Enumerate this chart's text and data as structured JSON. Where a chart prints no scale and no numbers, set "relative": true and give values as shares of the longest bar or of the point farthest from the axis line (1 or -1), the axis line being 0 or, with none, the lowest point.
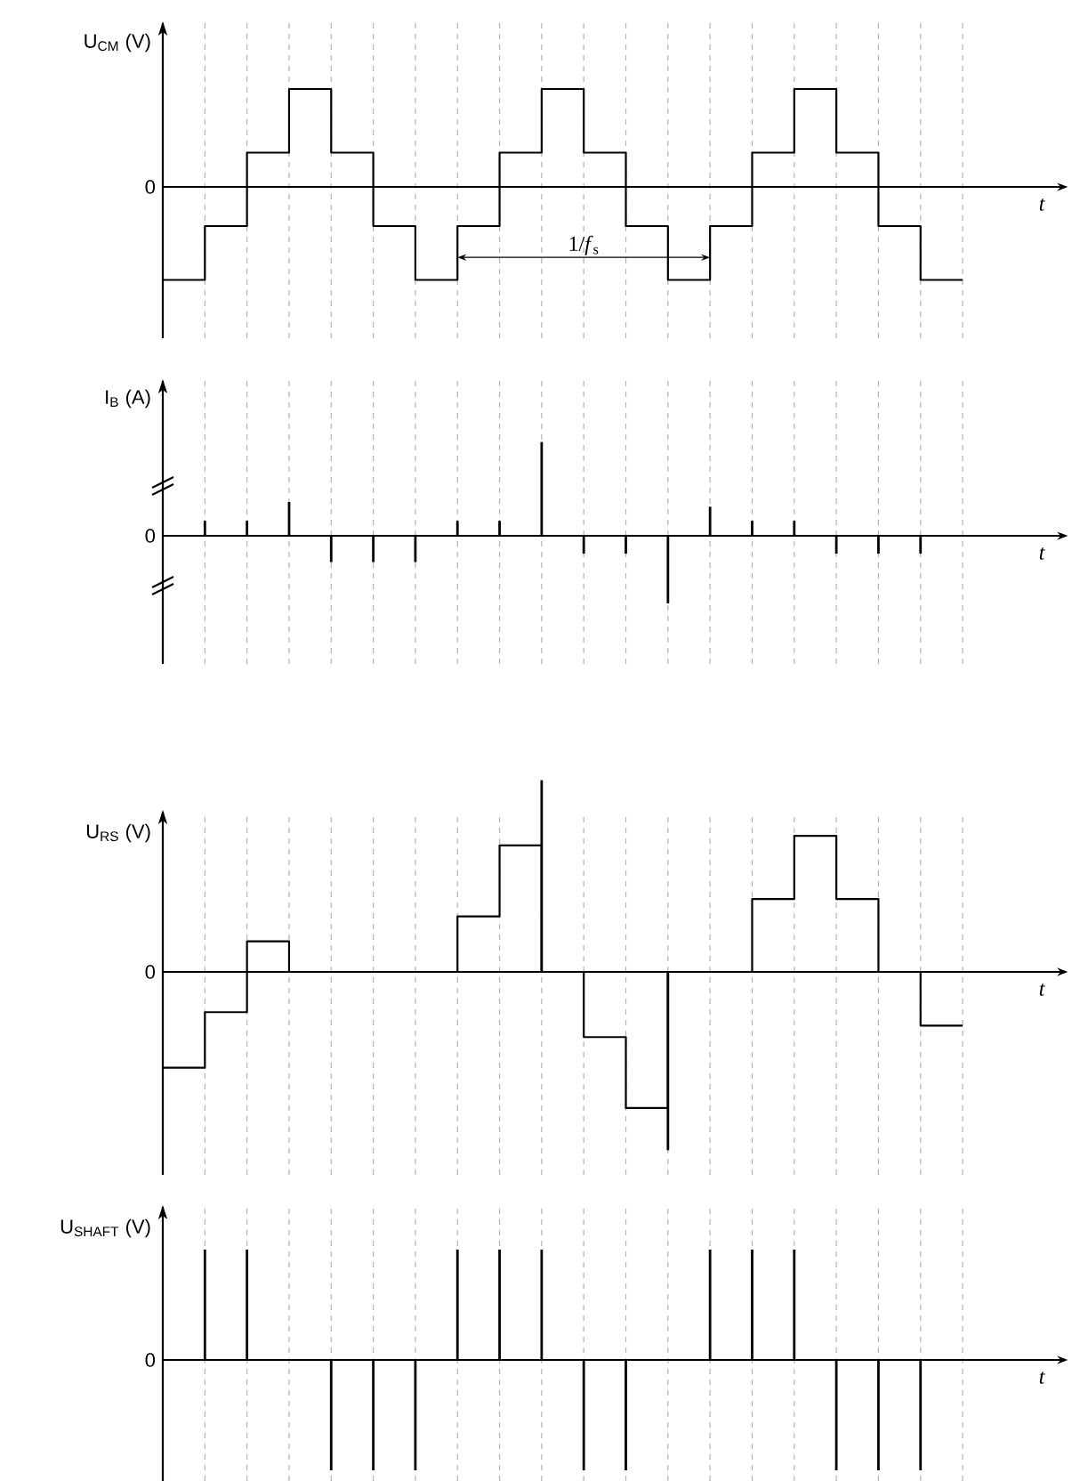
{
  "chart_data": [
    {
      "type": "step",
      "ylabel": "U$_{CM}$ (V)",
      "xlabel": "t",
      "relative": true,
      "grid": "x",
      "categories": [
        null,
        null,
        null,
        null,
        null,
        null,
        null,
        null,
        null,
        null,
        null,
        null,
        null,
        null,
        null,
        null,
        null,
        null,
        null,
        null
      ],
      "series": [
        {
          "color": "#000000",
          "values": [
            -0.95,
            -0.4,
            0.35,
            1,
            0.35,
            -0.4,
            -0.95,
            -0.4,
            0.35,
            1,
            0.35,
            -0.4,
            -0.95,
            -0.4,
            0.35,
            1,
            0.35,
            -0.4,
            -0.95,
            -0.95
          ]
        }
      ],
      "annotations": [
        "0",
        "1/*f*$_{s}$"
      ]
    },
    {
      "type": "bar",
      "ylabel": "I$_{B}$ (A)",
      "xlabel": "t",
      "relative": true,
      "grid": "x",
      "categories": [
        null,
        null,
        null,
        null,
        null,
        null,
        null,
        null,
        null,
        null,
        null,
        null,
        null,
        null,
        null,
        null,
        null,
        null,
        null,
        null
      ],
      "series": [
        {
          "color": "#000000",
          "values": [
            null,
            0.16,
            0.16,
            0.36,
            -0.28,
            -0.28,
            -0.28,
            0.16,
            0.16,
            1,
            -0.19,
            -0.19,
            -0.72,
            0.31,
            0.16,
            0.16,
            -0.19,
            -0.19,
            -0.19,
            null
          ]
        }
      ],
      "annotations": [
        "0"
      ]
    },
    {
      "type": "step",
      "ylabel": "U$_{RS}$ (V)",
      "xlabel": "t",
      "relative": true,
      "grid": "x",
      "categories": [
        null,
        null,
        null,
        null,
        null,
        null,
        null,
        null,
        null,
        null,
        null,
        null,
        null,
        null,
        null,
        null,
        null,
        null,
        null,
        null
      ],
      "series": [
        {
          "color": "#000000",
          "values": [
            -0.5,
            -0.21,
            0.16,
            0,
            0,
            0,
            0,
            0.29,
            0.66,
            0,
            -0.34,
            -0.71,
            0,
            0,
            0.38,
            0.71,
            0.38,
            0,
            -0.28,
            -0.28
          ]
        },
        {
          "type": "bar",
          "color": "#000000",
          "values": [
            null,
            null,
            null,
            null,
            null,
            null,
            null,
            null,
            null,
            1,
            null,
            null,
            -0.93,
            null,
            null,
            null,
            null,
            null,
            null,
            null
          ]
        }
      ],
      "annotations": [
        "0"
      ]
    },
    {
      "type": "bar",
      "ylabel": "U$_{SHAFT}$ (V)",
      "xlabel": "t",
      "relative": true,
      "grid": "x",
      "categories": [
        null,
        null,
        null,
        null,
        null,
        null,
        null,
        null,
        null,
        null,
        null,
        null,
        null,
        null,
        null,
        null,
        null,
        null,
        null,
        null
      ],
      "series": [
        {
          "color": "#000000",
          "values": [
            null,
            1,
            1,
            null,
            -1,
            -1,
            -1,
            1,
            1,
            1,
            -1,
            -1,
            null,
            1,
            1,
            1,
            -1,
            -1,
            -1,
            null
          ]
        }
      ],
      "annotations": [
        "0"
      ]
    }
  ]
}
